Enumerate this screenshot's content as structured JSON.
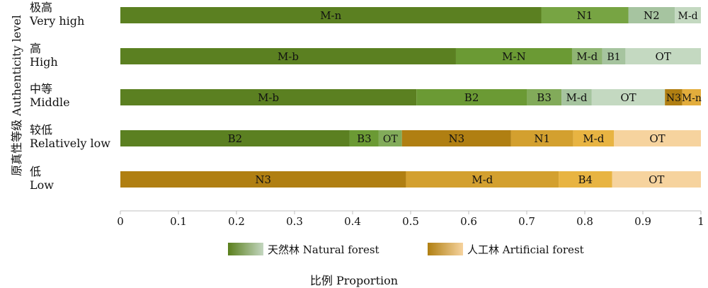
{
  "chart_data": {
    "type": "bar",
    "orientation": "horizontal",
    "stacked": true,
    "title": "",
    "xlabel": "比例 Proportion",
    "ylabel": "原真性等级 Authenticity level",
    "xlim": [
      0,
      1
    ],
    "xticks": [
      "0",
      "0.1",
      "0.2",
      "0.3",
      "0.4",
      "0.5",
      "0.6",
      "0.7",
      "0.8",
      "0.9",
      "1"
    ],
    "legend_position": "bottom",
    "legend": [
      {
        "name": "天然林 Natural forest",
        "color_dark": "#5a7f1c",
        "color_light": "#c3d6c0"
      },
      {
        "name": "人工林 Artificial forest",
        "color_dark": "#b07f12",
        "color_light": "#f6d39e"
      }
    ],
    "categories": [
      {
        "label_cn": "极高",
        "label_en": "Very high",
        "segments": [
          {
            "name": "M-n",
            "value": 0.725,
            "color": "#5b8021"
          },
          {
            "name": "N1",
            "value": 0.15,
            "color": "#77a443"
          },
          {
            "name": "N2",
            "value": 0.08,
            "color": "#a6c4a0"
          },
          {
            "name": "M-d",
            "value": 0.045,
            "color": "#c4d9c1"
          }
        ]
      },
      {
        "label_cn": "高",
        "label_en": "High",
        "segments": [
          {
            "name": "M-b",
            "value": 0.578,
            "color": "#5b8021"
          },
          {
            "name": "M-N",
            "value": 0.2,
            "color": "#6b9a34"
          },
          {
            "name": "M-d",
            "value": 0.052,
            "color": "#8fb573"
          },
          {
            "name": "B1",
            "value": 0.04,
            "color": "#a6c49f"
          },
          {
            "name": "OT",
            "value": 0.13,
            "color": "#c4d9c1"
          }
        ]
      },
      {
        "label_cn": "中等",
        "label_en": "Middle",
        "segments": [
          {
            "name": "M-b",
            "value": 0.51,
            "color": "#5b8021"
          },
          {
            "name": "B2",
            "value": 0.19,
            "color": "#6b9a34"
          },
          {
            "name": "B3",
            "value": 0.06,
            "color": "#82ab5a"
          },
          {
            "name": "M-d",
            "value": 0.052,
            "color": "#a6c49f"
          },
          {
            "name": "OT",
            "value": 0.126,
            "color": "#c4d9c1"
          },
          {
            "name": "N3",
            "value": 0.03,
            "color": "#b07f12"
          },
          {
            "name": "M-n",
            "value": 0.032,
            "color": "#e3ad3c"
          }
        ]
      },
      {
        "label_cn": "较低",
        "label_en": "Relatively low",
        "segments": [
          {
            "name": "B2",
            "value": 0.395,
            "color": "#5b8021"
          },
          {
            "name": "B3",
            "value": 0.05,
            "color": "#6b9a34"
          },
          {
            "name": "OT",
            "value": 0.04,
            "color": "#82ab5a"
          },
          {
            "name": "N3",
            "value": 0.188,
            "color": "#b07f12"
          },
          {
            "name": "N1",
            "value": 0.107,
            "color": "#d3a02f"
          },
          {
            "name": "M-d",
            "value": 0.07,
            "color": "#e8b442"
          },
          {
            "name": "OT",
            "value": 0.15,
            "color": "#f6d39e"
          }
        ]
      },
      {
        "label_cn": "低",
        "label_en": "Low",
        "segments": [
          {
            "name": "N3",
            "value": 0.492,
            "color": "#b07f12"
          },
          {
            "name": "M-d",
            "value": 0.263,
            "color": "#d3a02f"
          },
          {
            "name": "B4",
            "value": 0.092,
            "color": "#e8b442"
          },
          {
            "name": "OT",
            "value": 0.153,
            "color": "#f6d39e"
          }
        ]
      }
    ]
  }
}
